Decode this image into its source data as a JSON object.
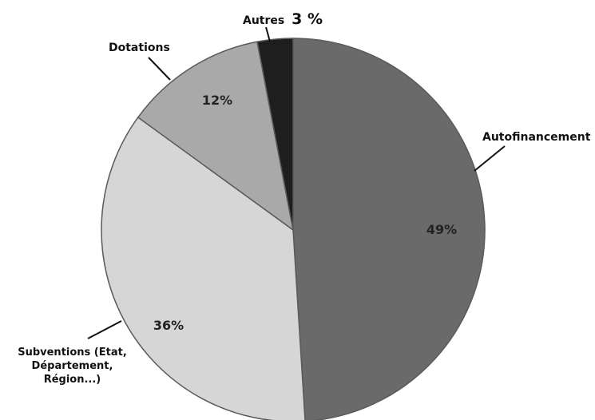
{
  "chart_data": {
    "type": "pie",
    "start_angle_deg": 0,
    "direction": "clockwise",
    "slices": [
      {
        "name": "Autofinancement",
        "value": 49,
        "value_label": "49%",
        "color": "#6a6a6a"
      },
      {
        "name": "Subventions (Etat, Département, Région...)",
        "value": 36,
        "value_label": "36%",
        "color": "#d6d6d6"
      },
      {
        "name": "Dotations",
        "value": 12,
        "value_label": "12%",
        "color": "#a9a9a9"
      },
      {
        "name": "Autres",
        "value": 3,
        "value_label": "3 %",
        "color": "#1e1e1e"
      }
    ],
    "callouts": {
      "autofinancement": "Autofinancement",
      "subventions": [
        "Subventions (Etat,",
        "Département,",
        "Région...)"
      ],
      "dotations": "Dotations",
      "autres": "Autres"
    }
  }
}
